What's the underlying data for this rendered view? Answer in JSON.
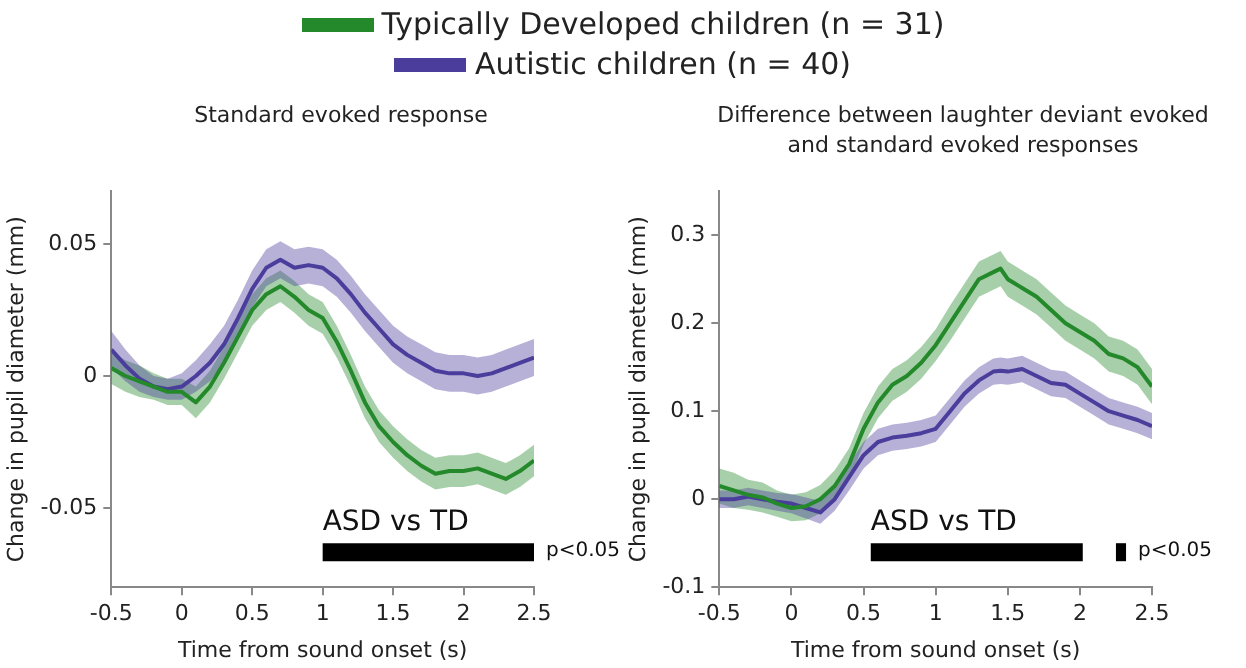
{
  "chart_data": [
    {
      "type": "line",
      "title": "Standard evoked response",
      "xlabel": "Time from sound onset (s)",
      "ylabel": "Change in pupil diameter (mm)",
      "legend": "top",
      "grid": false,
      "marker": "none",
      "line_style": "solid",
      "x": [
        -0.5,
        -0.4,
        -0.3,
        -0.2,
        -0.1,
        0,
        0.1,
        0.2,
        0.3,
        0.4,
        0.5,
        0.6,
        0.7,
        0.8,
        0.9,
        1.0,
        1.1,
        1.2,
        1.3,
        1.4,
        1.5,
        1.6,
        1.7,
        1.8,
        1.9,
        2.0,
        2.1,
        2.2,
        2.3,
        2.4,
        2.5
      ],
      "xlim": [
        -0.5,
        2.5
      ],
      "xticks": [
        -0.5,
        0,
        0.5,
        1,
        1.5,
        2,
        2.5
      ],
      "ylim": [
        -0.08,
        0.07
      ],
      "yticks": [
        -0.05,
        0,
        0.05
      ],
      "series": [
        {
          "name": "Typically Developed children (n = 31)",
          "color": "#23892a",
          "values": [
            0.003,
            0.0,
            -0.002,
            -0.004,
            -0.006,
            -0.006,
            -0.01,
            -0.004,
            0.005,
            0.015,
            0.025,
            0.031,
            0.034,
            0.03,
            0.025,
            0.022,
            0.013,
            0.002,
            -0.01,
            -0.019,
            -0.025,
            -0.03,
            -0.034,
            -0.037,
            -0.036,
            -0.036,
            -0.035,
            -0.037,
            -0.039,
            -0.036,
            -0.032
          ],
          "lower": [
            -0.003,
            -0.006,
            -0.008,
            -0.009,
            -0.011,
            -0.011,
            -0.016,
            -0.01,
            -0.001,
            0.009,
            0.019,
            0.025,
            0.028,
            0.024,
            0.019,
            0.016,
            0.007,
            -0.004,
            -0.016,
            -0.025,
            -0.031,
            -0.036,
            -0.04,
            -0.043,
            -0.042,
            -0.042,
            -0.041,
            -0.043,
            -0.045,
            -0.042,
            -0.038
          ],
          "upper": [
            0.009,
            0.006,
            0.004,
            0.001,
            -0.001,
            -0.001,
            -0.004,
            0.002,
            0.011,
            0.021,
            0.031,
            0.037,
            0.04,
            0.036,
            0.031,
            0.028,
            0.019,
            0.008,
            -0.004,
            -0.013,
            -0.019,
            -0.024,
            -0.028,
            -0.031,
            -0.03,
            -0.03,
            -0.029,
            -0.031,
            -0.033,
            -0.03,
            -0.026
          ]
        },
        {
          "name": "Autistic children (n = 40)",
          "color": "#4a3d9c",
          "values": [
            0.01,
            0.004,
            -0.001,
            -0.004,
            -0.005,
            -0.004,
            0.0,
            0.005,
            0.012,
            0.022,
            0.033,
            0.041,
            0.044,
            0.041,
            0.042,
            0.041,
            0.037,
            0.031,
            0.024,
            0.018,
            0.012,
            0.008,
            0.005,
            0.002,
            0.001,
            0.001,
            0.0,
            0.001,
            0.003,
            0.005,
            0.007
          ],
          "lower": [
            0.003,
            -0.002,
            -0.006,
            -0.008,
            -0.009,
            -0.009,
            -0.006,
            -0.002,
            0.005,
            0.015,
            0.026,
            0.034,
            0.037,
            0.034,
            0.035,
            0.034,
            0.03,
            0.024,
            0.017,
            0.011,
            0.005,
            0.001,
            -0.002,
            -0.005,
            -0.006,
            -0.006,
            -0.007,
            -0.006,
            -0.004,
            -0.002,
            0.0
          ],
          "upper": [
            0.017,
            0.01,
            0.004,
            0.0,
            -0.001,
            0.001,
            0.006,
            0.012,
            0.019,
            0.029,
            0.04,
            0.048,
            0.051,
            0.048,
            0.049,
            0.048,
            0.044,
            0.038,
            0.031,
            0.025,
            0.019,
            0.015,
            0.012,
            0.009,
            0.008,
            0.008,
            0.007,
            0.008,
            0.01,
            0.012,
            0.014
          ]
        }
      ],
      "bands": [
        {
          "axis": "x",
          "from": 1,
          "to": 2.5,
          "label": "ASD vs TD",
          "color": "#000000"
        }
      ],
      "annotations": [
        "p<0.05"
      ]
    },
    {
      "type": "line",
      "title": "Difference between laughter deviant evoked and standard evoked responses",
      "xlabel": "Time from sound onset (s)",
      "ylabel": "Change in pupil diameter (mm)",
      "grid": false,
      "marker": "none",
      "line_style": "solid",
      "x": [
        -0.5,
        -0.4,
        -0.3,
        -0.2,
        -0.1,
        0,
        0.1,
        0.2,
        0.3,
        0.4,
        0.5,
        0.6,
        0.7,
        0.8,
        0.9,
        1.0,
        1.1,
        1.2,
        1.3,
        1.4,
        1.45,
        1.5,
        1.6,
        1.7,
        1.8,
        1.9,
        2.0,
        2.1,
        2.2,
        2.3,
        2.4,
        2.5
      ],
      "xlim": [
        -0.5,
        2.5
      ],
      "xticks": [
        -0.5,
        0,
        0.5,
        1,
        1.5,
        2,
        2.5
      ],
      "ylim": [
        -0.1,
        0.35
      ],
      "yticks": [
        -0.1,
        0,
        0.1,
        0.2,
        0.3
      ],
      "series": [
        {
          "color": "#23892a",
          "values": [
            0.015,
            0.01,
            0.005,
            0.002,
            -0.005,
            -0.01,
            -0.008,
            0.0,
            0.015,
            0.04,
            0.08,
            0.11,
            0.13,
            0.14,
            0.155,
            0.175,
            0.2,
            0.225,
            0.25,
            0.258,
            0.262,
            0.25,
            0.24,
            0.23,
            0.215,
            0.2,
            0.19,
            0.18,
            0.165,
            0.16,
            0.15,
            0.128
          ],
          "lower": [
            -0.005,
            -0.01,
            -0.012,
            -0.015,
            -0.02,
            -0.025,
            -0.024,
            -0.016,
            -0.003,
            0.022,
            0.062,
            0.092,
            0.112,
            0.122,
            0.137,
            0.157,
            0.18,
            0.205,
            0.23,
            0.238,
            0.242,
            0.23,
            0.22,
            0.21,
            0.195,
            0.18,
            0.17,
            0.16,
            0.145,
            0.14,
            0.13,
            0.108
          ],
          "upper": [
            0.035,
            0.03,
            0.022,
            0.019,
            0.01,
            0.005,
            0.008,
            0.016,
            0.033,
            0.058,
            0.098,
            0.128,
            0.148,
            0.158,
            0.173,
            0.193,
            0.22,
            0.245,
            0.27,
            0.278,
            0.282,
            0.27,
            0.26,
            0.25,
            0.235,
            0.22,
            0.21,
            0.2,
            0.185,
            0.18,
            0.17,
            0.148
          ]
        },
        {
          "color": "#4a3d9c",
          "values": [
            0.0,
            0.0,
            0.003,
            0.0,
            -0.003,
            -0.005,
            -0.01,
            -0.015,
            0.0,
            0.025,
            0.05,
            0.065,
            0.07,
            0.072,
            0.075,
            0.08,
            0.1,
            0.12,
            0.135,
            0.145,
            0.146,
            0.145,
            0.148,
            0.14,
            0.132,
            0.13,
            0.12,
            0.11,
            0.1,
            0.095,
            0.09,
            0.083
          ],
          "lower": [
            -0.01,
            -0.01,
            -0.007,
            -0.01,
            -0.013,
            -0.016,
            -0.022,
            -0.028,
            -0.013,
            0.01,
            0.035,
            0.05,
            0.055,
            0.057,
            0.06,
            0.065,
            0.085,
            0.105,
            0.12,
            0.13,
            0.131,
            0.13,
            0.133,
            0.125,
            0.117,
            0.115,
            0.105,
            0.095,
            0.085,
            0.08,
            0.075,
            0.068
          ],
          "upper": [
            0.01,
            0.01,
            0.013,
            0.01,
            0.007,
            0.006,
            0.002,
            -0.002,
            0.013,
            0.04,
            0.065,
            0.08,
            0.085,
            0.087,
            0.09,
            0.095,
            0.115,
            0.135,
            0.15,
            0.16,
            0.161,
            0.16,
            0.163,
            0.155,
            0.147,
            0.145,
            0.135,
            0.125,
            0.115,
            0.11,
            0.105,
            0.098
          ]
        }
      ],
      "bands": [
        {
          "axis": "x",
          "from": 0.55,
          "to": 2.02,
          "label": "ASD vs TD",
          "color": "#000000"
        },
        {
          "axis": "x",
          "from": 2.25,
          "to": 2.32,
          "color": "#000000"
        }
      ],
      "annotations": [
        "p<0.05"
      ]
    }
  ]
}
